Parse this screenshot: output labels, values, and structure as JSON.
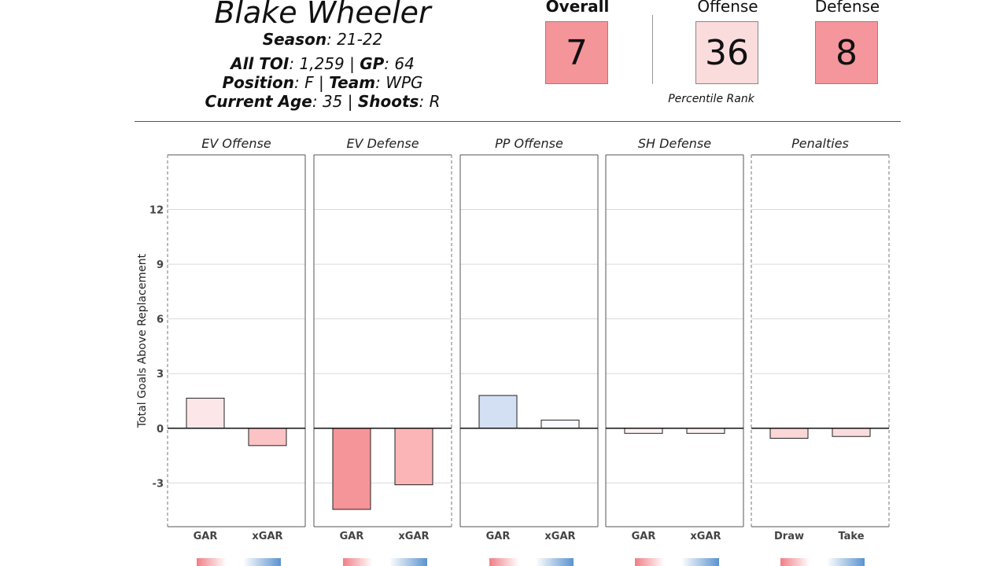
{
  "header": {
    "player_name": "Blake Wheeler",
    "season_label": "Season",
    "season_value": "21-22",
    "toi_label": "All TOI",
    "toi_value": "1,259",
    "gp_label": "GP",
    "gp_value": "64",
    "position_label": "Position",
    "position_value": "F",
    "team_label": "Team",
    "team_value": "WPG",
    "age_label": "Current Age",
    "age_value": "35",
    "shoots_label": "Shoots",
    "shoots_value": "R",
    "sep": "|"
  },
  "ranks": {
    "overall": {
      "label": "Overall",
      "value": "7",
      "color": "#f4959a"
    },
    "offense": {
      "label": "Offense",
      "value": "36",
      "color": "#fbdcdd"
    },
    "defense": {
      "label": "Defense",
      "value": "8",
      "color": "#f4969b"
    },
    "caption": "Percentile Rank"
  },
  "chart_data": {
    "type": "bar",
    "ylabel": "Total Goals Above Replacement",
    "ylim": [
      -5.4,
      15.0
    ],
    "yticks": [
      -3,
      0,
      3,
      6,
      9,
      12
    ],
    "grid": true,
    "panels": [
      {
        "title": "EV Offense",
        "bars": [
          {
            "category": "GAR",
            "value": 1.65,
            "color": "#fde6e7"
          },
          {
            "category": "xGAR",
            "value": -0.95,
            "color": "#fcc3c5"
          }
        ]
      },
      {
        "title": "EV Defense",
        "bars": [
          {
            "category": "GAR",
            "value": -4.45,
            "color": "#f69599"
          },
          {
            "category": "xGAR",
            "value": -3.1,
            "color": "#fbb5b7"
          }
        ]
      },
      {
        "title": "PP Offense",
        "bars": [
          {
            "category": "GAR",
            "value": 1.8,
            "color": "#d3e0f3"
          },
          {
            "category": "xGAR",
            "value": 0.45,
            "color": "#f7f9fd"
          }
        ]
      },
      {
        "title": "SH Defense",
        "bars": [
          {
            "category": "GAR",
            "value": -0.28,
            "color": "#fdf2f2"
          },
          {
            "category": "xGAR",
            "value": -0.28,
            "color": "#fdf2f2"
          }
        ]
      },
      {
        "title": "Penalties",
        "bars": [
          {
            "category": "Draw",
            "value": -0.55,
            "color": "#fbd6d7"
          },
          {
            "category": "Take",
            "value": -0.45,
            "color": "#fbdcdd"
          }
        ]
      }
    ]
  }
}
